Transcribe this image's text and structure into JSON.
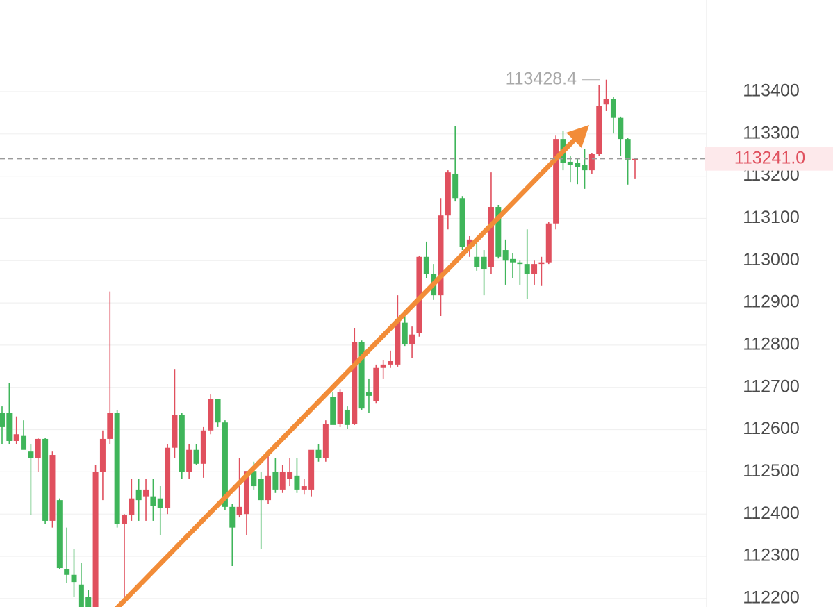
{
  "chart_data": {
    "type": "candlestick",
    "ylim": [
      112180,
      113617
    ],
    "yticks": [
      112200,
      112300,
      112400,
      112500,
      112600,
      112700,
      112800,
      112900,
      113000,
      113100,
      113200,
      113300,
      113400
    ],
    "up_color": "#e0505e",
    "down_color": "#3fb55a",
    "open": [
      112639,
      112639,
      112573,
      112585,
      112548,
      112532,
      112578,
      112384,
      112433,
      112269,
      112256,
      112233,
      112203,
      112180,
      112499,
      112578,
      112639,
      112376,
      112397,
      112458,
      112442,
      112442,
      112437,
      112414,
      112557,
      112634,
      112499,
      112552,
      112519,
      112598,
      112672,
      112617,
      112417,
      112397,
      112400,
      112502,
      112483,
      112433,
      112499,
      112458,
      112483,
      112491,
      112458,
      112458,
      112552,
      112532,
      112677,
      112614,
      112647,
      112614,
      112808,
      112688,
      112667,
      112746,
      112754,
      112754,
      112853,
      112803,
      112828,
      113009,
      112968,
      112918,
      113107,
      113206,
      113148,
      113033,
      113009,
      113009,
      112984,
      113127,
      113025,
      113004,
      112996,
      112992,
      112968,
      112992,
      112996,
      113088,
      113288,
      113234,
      113231,
      113226,
      113214,
      113252,
      113370,
      113382,
      113338,
      113288,
      113239
    ],
    "high": [
      112655,
      112710,
      112631,
      112622,
      112565,
      112581,
      112581,
      112548,
      112437,
      112368,
      112318,
      112285,
      112220,
      112516,
      112598,
      112927,
      112647,
      112400,
      112483,
      112483,
      112483,
      112483,
      112466,
      112565,
      112742,
      112639,
      112565,
      112565,
      112606,
      112683,
      112672,
      112622,
      112425,
      112532,
      112499,
      112524,
      112499,
      112540,
      112532,
      112516,
      112532,
      112532,
      112483,
      112548,
      112565,
      112622,
      112688,
      112696,
      112655,
      112841,
      112811,
      112721,
      112754,
      112765,
      112787,
      112918,
      112877,
      112844,
      113012,
      113045,
      112992,
      113148,
      113214,
      113318,
      113153,
      113058,
      113050,
      113025,
      113209,
      113132,
      113050,
      113017,
      113000,
      113074,
      113000,
      113009,
      113091,
      113296,
      113308,
      113247,
      113242,
      113264,
      113255,
      113416,
      113428.4,
      113387,
      113341,
      113291,
      113242
    ],
    "low": [
      112565,
      112565,
      112565,
      112557,
      112397,
      112499,
      112376,
      112368,
      112269,
      112236,
      112203,
      112180,
      112180,
      112180,
      112433,
      112565,
      112368,
      112187,
      112384,
      112384,
      112384,
      112384,
      112351,
      112400,
      112532,
      112483,
      112483,
      112516,
      112486,
      112589,
      112606,
      112409,
      112277,
      112392,
      112351,
      112458,
      112318,
      112425,
      112450,
      112450,
      112466,
      112450,
      112446,
      112442,
      112524,
      112524,
      112614,
      112606,
      112601,
      112611,
      112647,
      112639,
      112663,
      112721,
      112746,
      112749,
      112798,
      112770,
      112820,
      112959,
      112907,
      112869,
      113074,
      113140,
      113025,
      113009,
      112976,
      112918,
      112968,
      113005,
      112943,
      112959,
      112943,
      112910,
      112943,
      112940,
      112992,
      113074,
      113214,
      113186,
      113181,
      113170,
      113206,
      113247,
      113354,
      113301,
      113247,
      113180,
      113193
    ],
    "close": [
      112606,
      112573,
      112589,
      112552,
      112532,
      112578,
      112384,
      112540,
      112272,
      112256,
      112239,
      112180,
      112180,
      112499,
      112578,
      112639,
      112376,
      112397,
      112437,
      112433,
      112458,
      112420,
      112414,
      112557,
      112634,
      112499,
      112552,
      112519,
      112598,
      112672,
      112617,
      112417,
      112368,
      112417,
      112502,
      112466,
      112433,
      112491,
      112458,
      112499,
      112499,
      112458,
      112466,
      112552,
      112532,
      112614,
      112611,
      112688,
      112611,
      112808,
      112650,
      112680,
      112746,
      112754,
      112762,
      112861,
      112803,
      112825,
      113009,
      112968,
      112918,
      113107,
      113209,
      113148,
      113033,
      113050,
      112984,
      112979,
      113127,
      113009,
      113000,
      112996,
      112992,
      112968,
      112992,
      112996,
      113088,
      113288,
      113231,
      113226,
      113222,
      113214,
      113252,
      113367,
      113382,
      113338,
      113288,
      113239,
      113241
    ],
    "max_label": 113428.4,
    "last_price": {
      "value": 113241,
      "label": "113241.0"
    },
    "grid": true
  }
}
